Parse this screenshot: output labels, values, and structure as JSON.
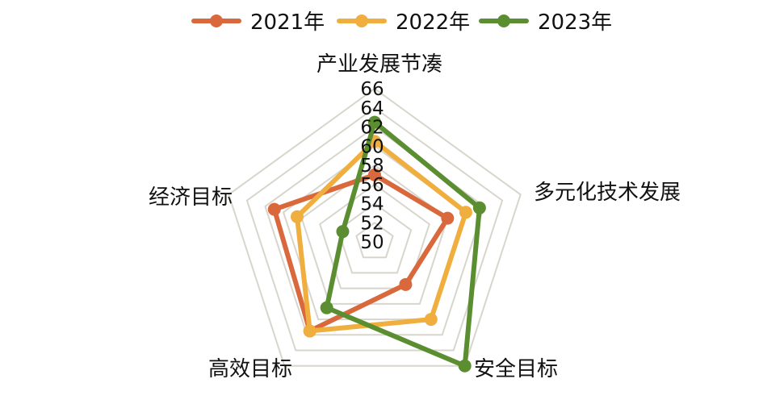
{
  "chart_data": {
    "type": "radar",
    "title": "",
    "categories": [
      "产业发展节凑",
      "多元化技术发展",
      "安全目标",
      "高效目标",
      "经济目标"
    ],
    "rlim": [
      50,
      66
    ],
    "ticks": [
      "50",
      "52",
      "54",
      "56",
      "58",
      "60",
      "62",
      "64",
      "66"
    ],
    "grid": true,
    "legend_position": "top",
    "series": [
      {
        "name": "2021年",
        "color": "#D9693C",
        "values": [
          57,
          58,
          55.5,
          61.5,
          61
        ]
      },
      {
        "name": "2022年",
        "color": "#EFAE3E",
        "values": [
          60.5,
          60,
          60,
          61.5,
          58.5
        ]
      },
      {
        "name": "2023年",
        "color": "#5B8E30",
        "values": [
          62.5,
          61.5,
          66,
          58.5,
          53.5
        ]
      }
    ],
    "grid_color": "#D8D5CC"
  }
}
